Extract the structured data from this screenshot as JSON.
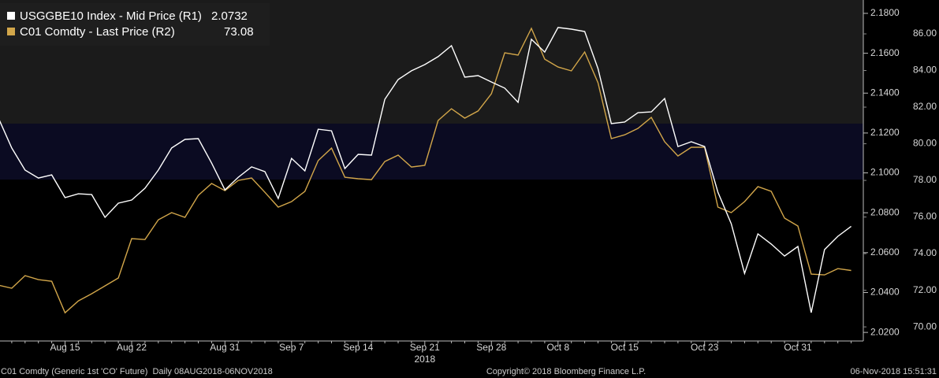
{
  "chart_data": {
    "type": "line",
    "categories": [
      null,
      null,
      null,
      null,
      null,
      "Aug 15",
      null,
      null,
      null,
      null,
      "Aug 22",
      null,
      null,
      null,
      null,
      null,
      null,
      "Aug 31",
      null,
      null,
      null,
      null,
      "Sep 7",
      null,
      null,
      null,
      null,
      "Sep 14",
      null,
      null,
      null,
      null,
      "Sep 21",
      null,
      null,
      null,
      null,
      "Sep 28",
      null,
      null,
      null,
      null,
      "Oct 8",
      null,
      null,
      null,
      null,
      "Oct 15",
      null,
      null,
      null,
      null,
      null,
      "Oct 23",
      null,
      null,
      null,
      null,
      null,
      null,
      "Oct 31",
      null,
      null,
      null,
      null
    ],
    "year_label": "2018",
    "series": [
      {
        "name": "USGGBE10 Index - Mid Price (R1)",
        "color": "#ffffff",
        "axis": "y",
        "values": [
          2.1275,
          2.1125,
          2.1014,
          2.0974,
          2.099,
          2.0876,
          2.0895,
          2.0891,
          2.0777,
          2.0848,
          2.0864,
          2.0923,
          2.1014,
          2.1125,
          2.1168,
          2.1172,
          2.1049,
          2.0915,
          2.0978,
          2.103,
          2.1006,
          2.0872,
          2.1073,
          2.101,
          2.1219,
          2.1211,
          2.1022,
          2.1093,
          2.1089,
          2.1369,
          2.1468,
          2.1512,
          2.1543,
          2.1583,
          2.1638,
          2.148,
          2.1488,
          2.1456,
          2.1425,
          2.1354,
          2.167,
          2.1606,
          2.1729,
          2.1721,
          2.1709,
          2.1523,
          2.1247,
          2.1255,
          2.1302,
          2.1306,
          2.1373,
          2.1132,
          2.1156,
          2.1132,
          2.0903,
          2.0745,
          2.0496,
          2.0694,
          2.0643,
          2.0583,
          2.0631,
          2.0299,
          2.0615,
          2.0682,
          2.0732
        ]
      },
      {
        "name": "C01 Comdty - Last Price (R2)",
        "color": "#d2a64a",
        "axis": "y2",
        "values": [
          72.28,
          72.11,
          72.8,
          72.58,
          72.49,
          70.77,
          71.42,
          71.81,
          72.24,
          72.67,
          74.82,
          74.77,
          75.85,
          76.24,
          75.98,
          77.18,
          77.83,
          77.44,
          78.0,
          78.13,
          77.35,
          76.54,
          76.84,
          77.4,
          79.08,
          79.76,
          78.17,
          78.09,
          78.04,
          79.03,
          79.38,
          78.73,
          78.82,
          81.27,
          81.91,
          81.4,
          81.79,
          82.73,
          84.97,
          84.84,
          86.3,
          84.62,
          84.19,
          83.98,
          85.01,
          83.33,
          80.28,
          80.49,
          80.84,
          81.44,
          80.11,
          79.33,
          79.81,
          79.81,
          76.54,
          76.24,
          76.84,
          77.66,
          77.4,
          75.94,
          75.51,
          72.88,
          72.84,
          73.18,
          73.08
        ]
      }
    ],
    "ylim": [
      2.0157,
      2.1867
    ],
    "yticks": [
      {
        "value": 2.02,
        "label": "2.0200"
      },
      {
        "value": 2.04,
        "label": "2.0400"
      },
      {
        "value": 2.06,
        "label": "2.0600"
      },
      {
        "value": 2.08,
        "label": "2.0800"
      },
      {
        "value": 2.1,
        "label": "2.1000"
      },
      {
        "value": 2.12,
        "label": "2.1200"
      },
      {
        "value": 2.14,
        "label": "2.1400"
      },
      {
        "value": 2.16,
        "label": "2.1600"
      },
      {
        "value": 2.18,
        "label": "2.1800"
      }
    ],
    "y2lim": [
      69.23,
      87.85
    ],
    "y2ticks": [
      {
        "value": 70,
        "label": "70.00"
      },
      {
        "value": 72,
        "label": "72.00"
      },
      {
        "value": 74,
        "label": "74.00"
      },
      {
        "value": 76,
        "label": "76.00"
      },
      {
        "value": 78,
        "label": "78.00"
      },
      {
        "value": 80,
        "label": "80.00"
      },
      {
        "value": 82,
        "label": "82.00"
      },
      {
        "value": 84,
        "label": "84.00"
      },
      {
        "value": 86,
        "label": "86.00"
      }
    ],
    "footer_left": "C01 Comdty (Generic 1st 'CO' Future)  Daily 08AUG2018-06NOV2018",
    "footer_center": "Copyright© 2018 Bloomberg Finance L.P.",
    "footer_right": "06-Nov-2018 15:51:31"
  }
}
